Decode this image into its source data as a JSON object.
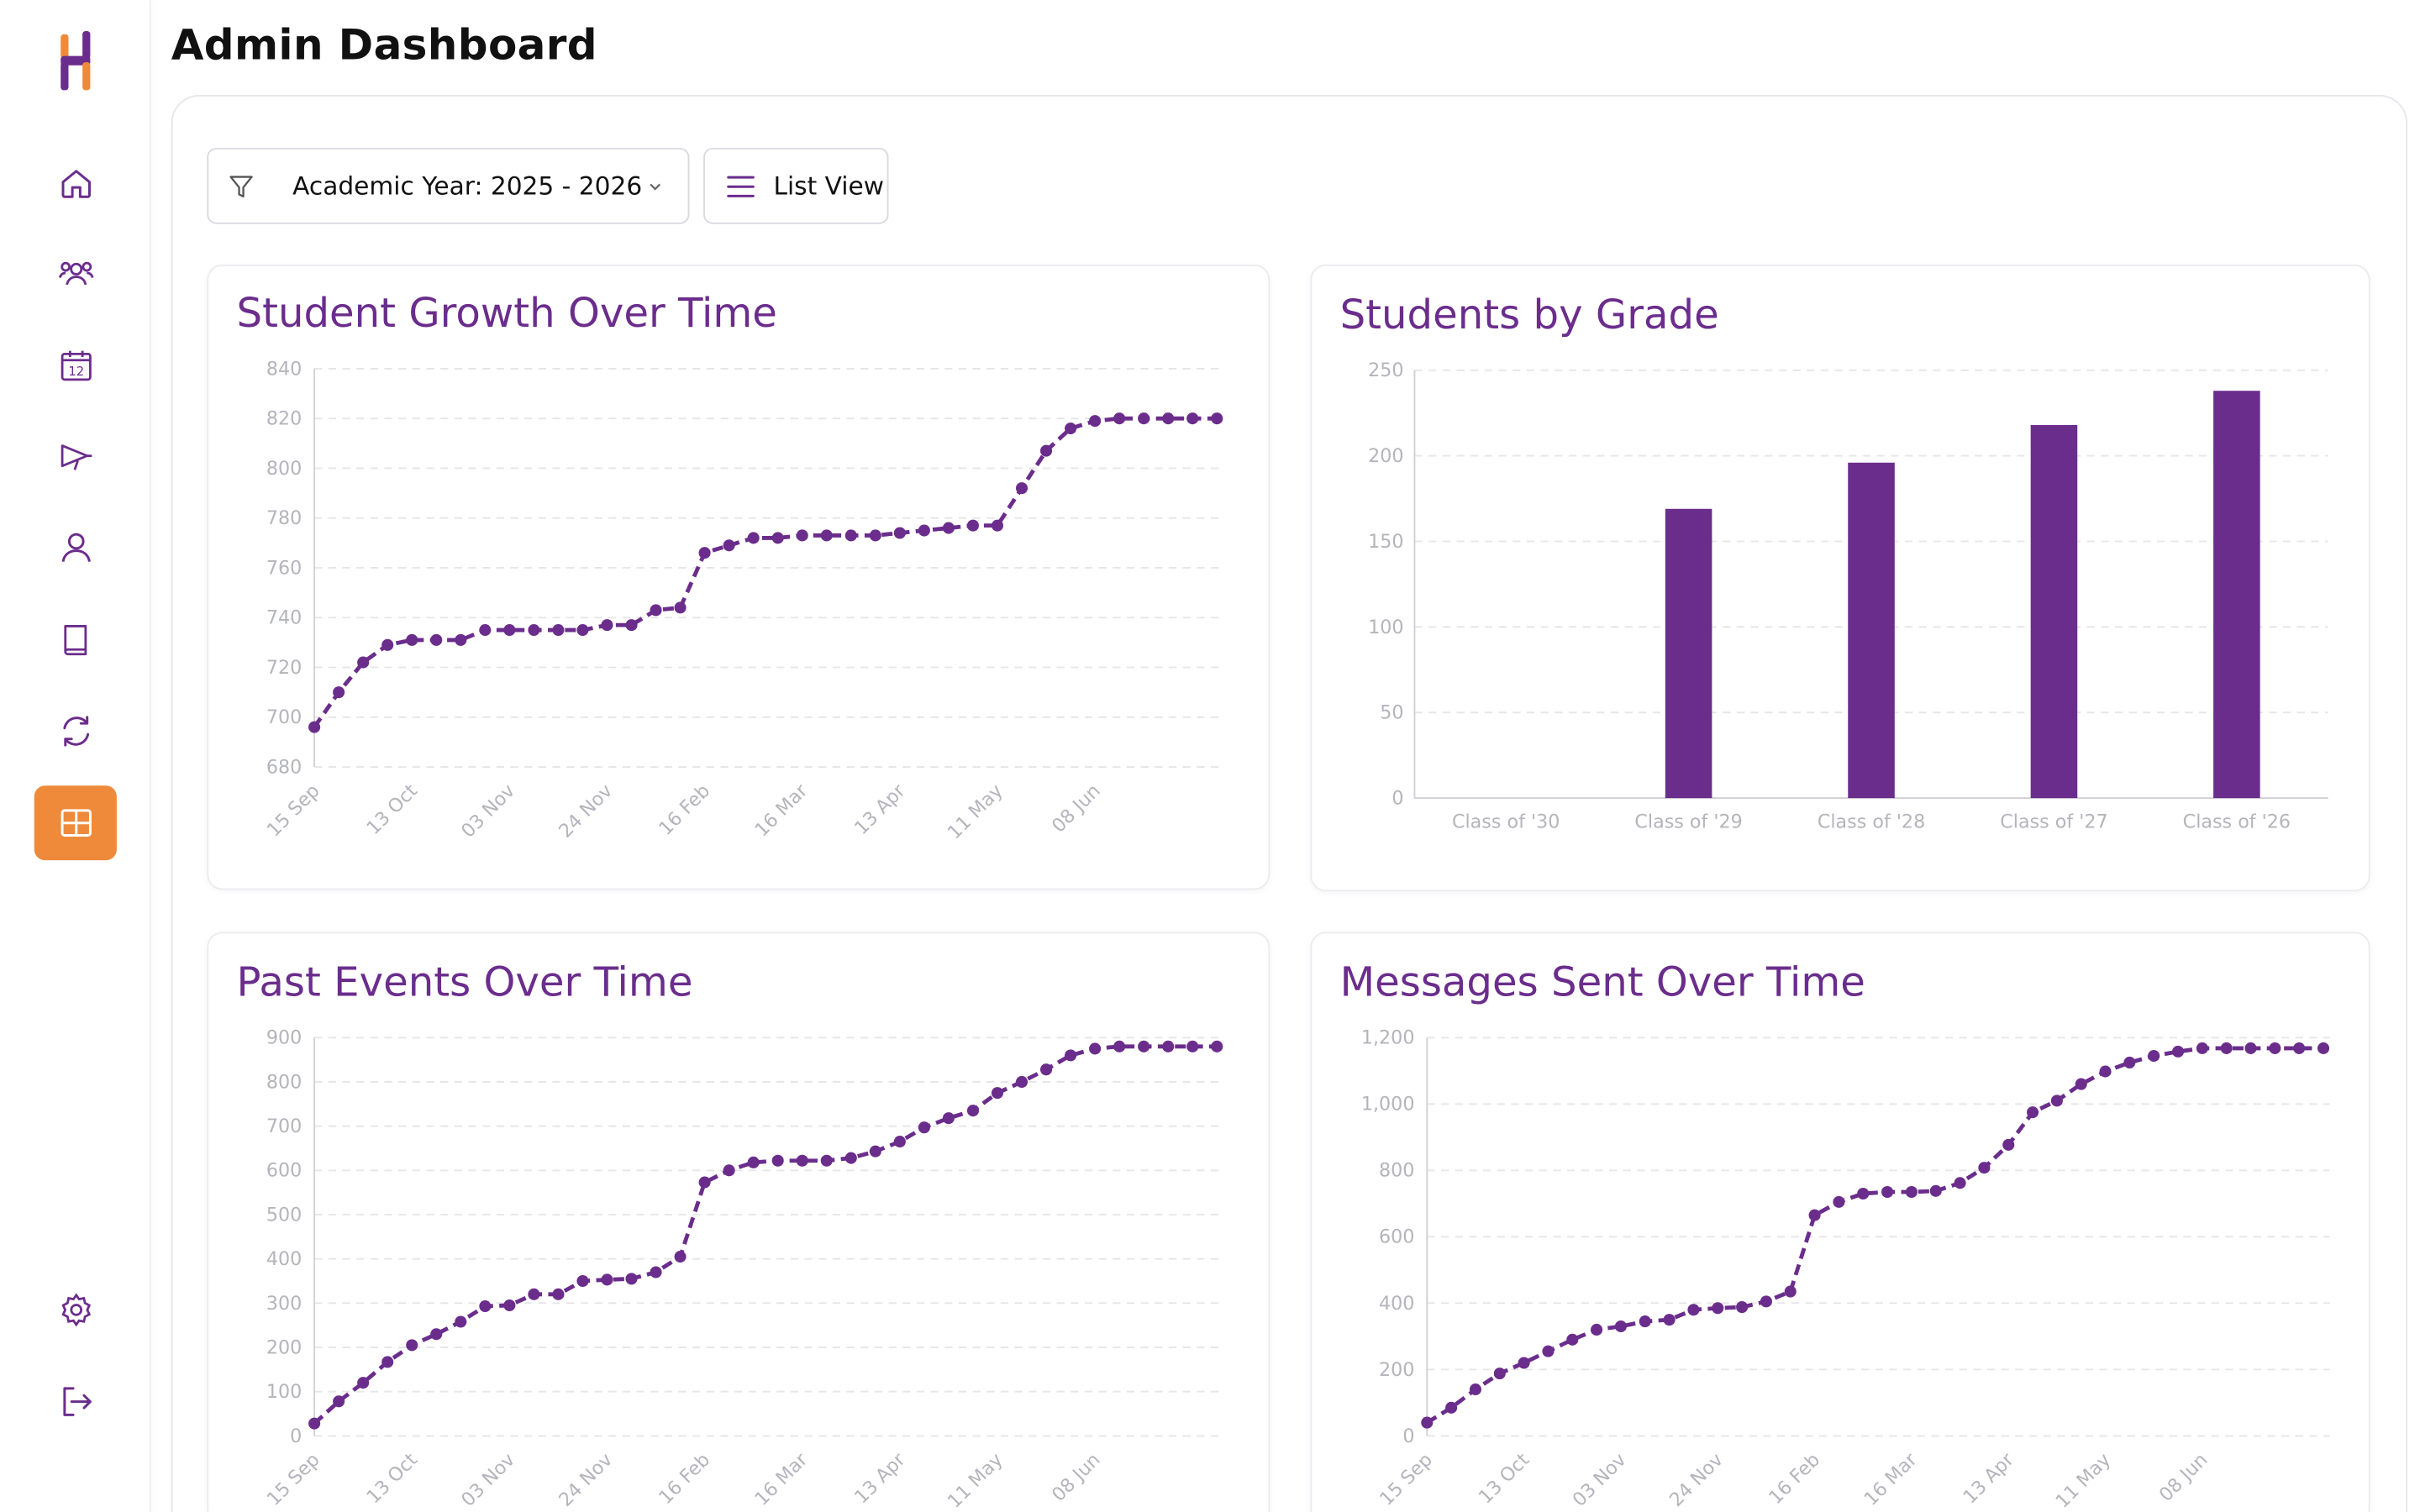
{
  "page": {
    "title": "Admin Dashboard"
  },
  "colors": {
    "accent": "#ef8a3a",
    "primary": "#6b2d8c",
    "grid": "#e5e5ea",
    "tick": "#b4b4bc"
  },
  "sidebar": {
    "items": [
      {
        "name": "home-icon",
        "active": false
      },
      {
        "name": "users-icon",
        "active": false
      },
      {
        "name": "calendar-icon",
        "label": "12",
        "active": false
      },
      {
        "name": "megaphone-icon",
        "active": false
      },
      {
        "name": "user-icon",
        "active": false
      },
      {
        "name": "book-icon",
        "active": false
      },
      {
        "name": "sync-icon",
        "active": false
      },
      {
        "name": "dashboard-grid-icon",
        "active": true
      }
    ],
    "bottom": [
      {
        "name": "settings-icon"
      },
      {
        "name": "logout-icon"
      }
    ]
  },
  "filters": {
    "academic_year": "Academic Year: 2025 - 2026",
    "view_toggle": "List View"
  },
  "chart_data": [
    {
      "type": "line",
      "title": "Student Growth Over Time",
      "x_ticks": [
        "15 Sep",
        "13 Oct",
        "03 Nov",
        "24 Nov",
        "16 Feb",
        "16 Mar",
        "13 Apr",
        "11 May",
        "08 Jun"
      ],
      "y_ticks": [
        "680",
        "700",
        "720",
        "740",
        "760",
        "780",
        "800",
        "820",
        "840"
      ],
      "ylim": [
        680,
        840
      ],
      "values": [
        696,
        710,
        722,
        729,
        731,
        731,
        731,
        735,
        735,
        735,
        735,
        735,
        737,
        737,
        743,
        744,
        766,
        769,
        772,
        772,
        773,
        773,
        773,
        773,
        774,
        775,
        776,
        777,
        777,
        792,
        807,
        816,
        819,
        820,
        820,
        820,
        820,
        820
      ]
    },
    {
      "type": "bar",
      "title": "Students by Grade",
      "categories": [
        "Class of '30",
        "Class of '29",
        "Class of '28",
        "Class of '27",
        "Class of '26"
      ],
      "values": [
        0,
        169,
        196,
        218,
        238
      ],
      "y_ticks": [
        "0",
        "50",
        "100",
        "150",
        "200",
        "250"
      ],
      "ylim": [
        0,
        250
      ]
    },
    {
      "type": "line",
      "title": "Past Events Over Time",
      "x_ticks": [
        "15 Sep",
        "13 Oct",
        "03 Nov",
        "24 Nov",
        "16 Feb",
        "16 Mar",
        "13 Apr",
        "11 May",
        "08 Jun"
      ],
      "y_ticks": [
        "0",
        "100",
        "200",
        "300",
        "400",
        "500",
        "600",
        "700",
        "800",
        "900"
      ],
      "ylim": [
        0,
        900
      ],
      "values": [
        28,
        78,
        120,
        167,
        205,
        230,
        258,
        293,
        295,
        320,
        320,
        350,
        353,
        355,
        370,
        405,
        573,
        600,
        618,
        622,
        622,
        622,
        628,
        643,
        665,
        697,
        718,
        735,
        775,
        800,
        828,
        860,
        875,
        880,
        880,
        880,
        880,
        880
      ]
    },
    {
      "type": "line",
      "title": "Messages Sent Over Time",
      "x_ticks": [
        "15 Sep",
        "13 Oct",
        "03 Nov",
        "24 Nov",
        "16 Feb",
        "16 Mar",
        "13 Apr",
        "11 May",
        "08 Jun"
      ],
      "y_ticks": [
        "0",
        "200",
        "400",
        "600",
        "800",
        "1,000",
        "1,200"
      ],
      "ylim": [
        0,
        1200
      ],
      "values": [
        40,
        85,
        140,
        188,
        220,
        255,
        290,
        320,
        330,
        345,
        350,
        380,
        385,
        388,
        405,
        435,
        665,
        705,
        730,
        735,
        735,
        738,
        762,
        808,
        877,
        975,
        1010,
        1060,
        1098,
        1125,
        1145,
        1158,
        1168,
        1168,
        1168,
        1168,
        1168,
        1168
      ]
    }
  ]
}
